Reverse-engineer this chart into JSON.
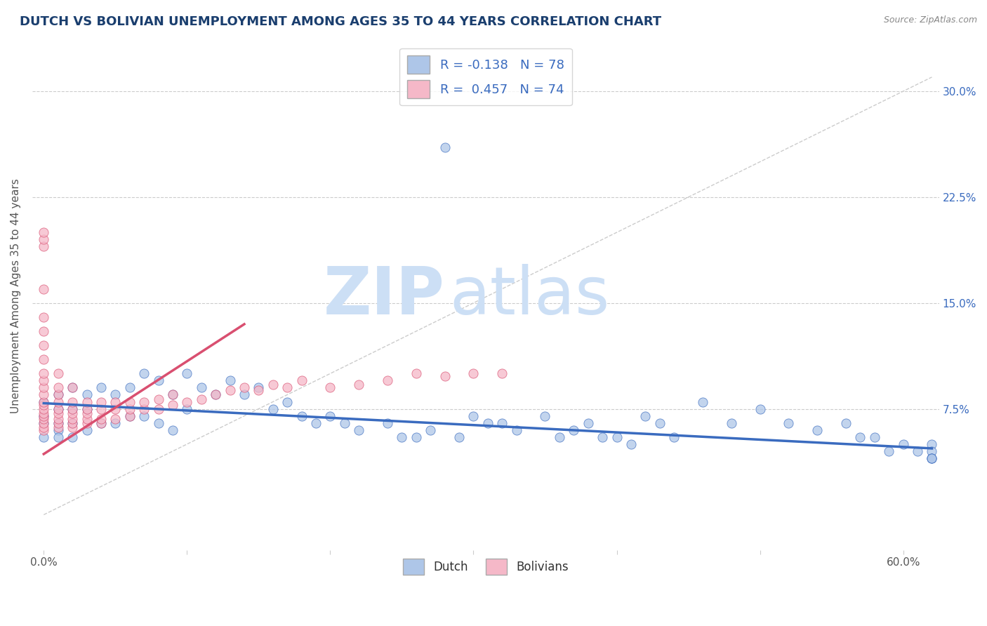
{
  "title": "DUTCH VS BOLIVIAN UNEMPLOYMENT AMONG AGES 35 TO 44 YEARS CORRELATION CHART",
  "source": "Source: ZipAtlas.com",
  "ylabel": "Unemployment Among Ages 35 to 44 years",
  "dutch_R": -0.138,
  "dutch_N": 78,
  "bolivian_R": 0.457,
  "bolivian_N": 74,
  "dutch_color": "#aec6e8",
  "bolivian_color": "#f5b8c8",
  "dutch_line_color": "#3a6bbf",
  "bolivian_line_color": "#d94f70",
  "grid_color": "#cccccc",
  "diag_color": "#cccccc",
  "watermark_color": "#ccdff5",
  "title_color": "#1a3e6e",
  "source_color": "#888888",
  "ylabel_color": "#555555",
  "tick_color": "#555555",
  "right_tick_color": "#3a6bbf",
  "xlim": [
    -0.008,
    0.625
  ],
  "ylim": [
    -0.025,
    0.335
  ],
  "yticks": [
    0.0,
    0.075,
    0.15,
    0.225,
    0.3
  ],
  "yticklabels": [
    "",
    "7.5%",
    "15.0%",
    "22.5%",
    "30.0%"
  ],
  "xticks": [
    0.0,
    0.1,
    0.2,
    0.3,
    0.4,
    0.5,
    0.6
  ],
  "xticklabels": [
    "0.0%",
    "",
    "",
    "",
    "",
    "",
    "60.0%"
  ],
  "dutch_line_x": [
    0.0,
    0.62
  ],
  "dutch_line_y": [
    0.079,
    0.047
  ],
  "bolivian_line_x": [
    0.0,
    0.14
  ],
  "bolivian_line_y": [
    0.043,
    0.135
  ],
  "dutch_x": [
    0.0,
    0.0,
    0.0,
    0.0,
    0.01,
    0.01,
    0.01,
    0.01,
    0.01,
    0.02,
    0.02,
    0.02,
    0.02,
    0.03,
    0.03,
    0.03,
    0.04,
    0.04,
    0.05,
    0.05,
    0.06,
    0.06,
    0.07,
    0.07,
    0.08,
    0.08,
    0.09,
    0.09,
    0.1,
    0.1,
    0.11,
    0.12,
    0.13,
    0.14,
    0.15,
    0.16,
    0.17,
    0.18,
    0.19,
    0.2,
    0.21,
    0.22,
    0.24,
    0.25,
    0.26,
    0.27,
    0.28,
    0.29,
    0.3,
    0.31,
    0.32,
    0.33,
    0.35,
    0.36,
    0.37,
    0.38,
    0.39,
    0.4,
    0.41,
    0.42,
    0.43,
    0.44,
    0.46,
    0.48,
    0.5,
    0.52,
    0.54,
    0.56,
    0.57,
    0.58,
    0.59,
    0.6,
    0.61,
    0.62,
    0.62,
    0.62,
    0.62,
    0.62
  ],
  "dutch_y": [
    0.08,
    0.07,
    0.065,
    0.055,
    0.085,
    0.075,
    0.065,
    0.06,
    0.055,
    0.09,
    0.075,
    0.065,
    0.055,
    0.085,
    0.075,
    0.06,
    0.09,
    0.065,
    0.085,
    0.065,
    0.09,
    0.07,
    0.1,
    0.07,
    0.095,
    0.065,
    0.085,
    0.06,
    0.1,
    0.075,
    0.09,
    0.085,
    0.095,
    0.085,
    0.09,
    0.075,
    0.08,
    0.07,
    0.065,
    0.07,
    0.065,
    0.06,
    0.065,
    0.055,
    0.055,
    0.06,
    0.26,
    0.055,
    0.07,
    0.065,
    0.065,
    0.06,
    0.07,
    0.055,
    0.06,
    0.065,
    0.055,
    0.055,
    0.05,
    0.07,
    0.065,
    0.055,
    0.08,
    0.065,
    0.075,
    0.065,
    0.06,
    0.065,
    0.055,
    0.055,
    0.045,
    0.05,
    0.045,
    0.05,
    0.045,
    0.04,
    0.04,
    0.04
  ],
  "bolivian_x": [
    0.0,
    0.0,
    0.0,
    0.0,
    0.0,
    0.0,
    0.0,
    0.0,
    0.0,
    0.0,
    0.0,
    0.0,
    0.0,
    0.0,
    0.0,
    0.0,
    0.0,
    0.0,
    0.0,
    0.0,
    0.0,
    0.01,
    0.01,
    0.01,
    0.01,
    0.01,
    0.01,
    0.01,
    0.01,
    0.01,
    0.02,
    0.02,
    0.02,
    0.02,
    0.02,
    0.02,
    0.02,
    0.03,
    0.03,
    0.03,
    0.03,
    0.03,
    0.04,
    0.04,
    0.04,
    0.04,
    0.05,
    0.05,
    0.05,
    0.06,
    0.06,
    0.06,
    0.07,
    0.07,
    0.08,
    0.08,
    0.09,
    0.09,
    0.1,
    0.11,
    0.12,
    0.13,
    0.14,
    0.15,
    0.16,
    0.17,
    0.18,
    0.2,
    0.22,
    0.24,
    0.26,
    0.28,
    0.3,
    0.32
  ],
  "bolivian_y": [
    0.06,
    0.062,
    0.065,
    0.068,
    0.07,
    0.072,
    0.075,
    0.078,
    0.08,
    0.085,
    0.09,
    0.095,
    0.1,
    0.11,
    0.12,
    0.13,
    0.14,
    0.16,
    0.19,
    0.195,
    0.2,
    0.062,
    0.065,
    0.068,
    0.072,
    0.075,
    0.08,
    0.085,
    0.09,
    0.1,
    0.062,
    0.065,
    0.068,
    0.072,
    0.075,
    0.08,
    0.09,
    0.065,
    0.068,
    0.072,
    0.075,
    0.08,
    0.065,
    0.068,
    0.075,
    0.08,
    0.068,
    0.075,
    0.08,
    0.07,
    0.075,
    0.08,
    0.075,
    0.08,
    0.075,
    0.082,
    0.078,
    0.085,
    0.08,
    0.082,
    0.085,
    0.088,
    0.09,
    0.088,
    0.092,
    0.09,
    0.095,
    0.09,
    0.092,
    0.095,
    0.1,
    0.098,
    0.1,
    0.1
  ]
}
